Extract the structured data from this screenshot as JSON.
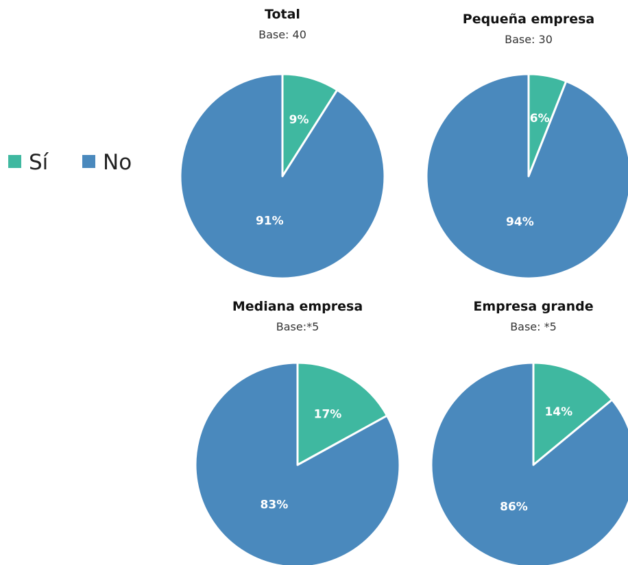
{
  "legend": {
    "items": [
      {
        "label": "Sí",
        "color": "#3fb8a0"
      },
      {
        "label": "No",
        "color": "#4a89bd"
      }
    ]
  },
  "chart_data": [
    {
      "type": "pie",
      "title": "Total",
      "subtitle": "Base: 40",
      "slices": [
        {
          "category": "Sí",
          "value": 9,
          "label": "9%",
          "color": "#3fb8a0"
        },
        {
          "category": "No",
          "value": 91,
          "label": "91%",
          "color": "#4a89bd"
        }
      ]
    },
    {
      "type": "pie",
      "title": "Pequeña empresa",
      "subtitle": "Base: 30",
      "slices": [
        {
          "category": "Sí",
          "value": 6,
          "label": "6%",
          "color": "#3fb8a0"
        },
        {
          "category": "No",
          "value": 94,
          "label": "94%",
          "color": "#4a89bd"
        }
      ]
    },
    {
      "type": "pie",
      "title": "Mediana empresa",
      "subtitle": "Base:*5",
      "slices": [
        {
          "category": "Sí",
          "value": 17,
          "label": "17%",
          "color": "#3fb8a0"
        },
        {
          "category": "No",
          "value": 83,
          "label": "83%",
          "color": "#4a89bd"
        }
      ]
    },
    {
      "type": "pie",
      "title": "Empresa grande",
      "subtitle": "Base: *5",
      "slices": [
        {
          "category": "Sí",
          "value": 14,
          "label": "14%",
          "color": "#3fb8a0"
        },
        {
          "category": "No",
          "value": 86,
          "label": "86%",
          "color": "#4a89bd"
        }
      ]
    }
  ]
}
